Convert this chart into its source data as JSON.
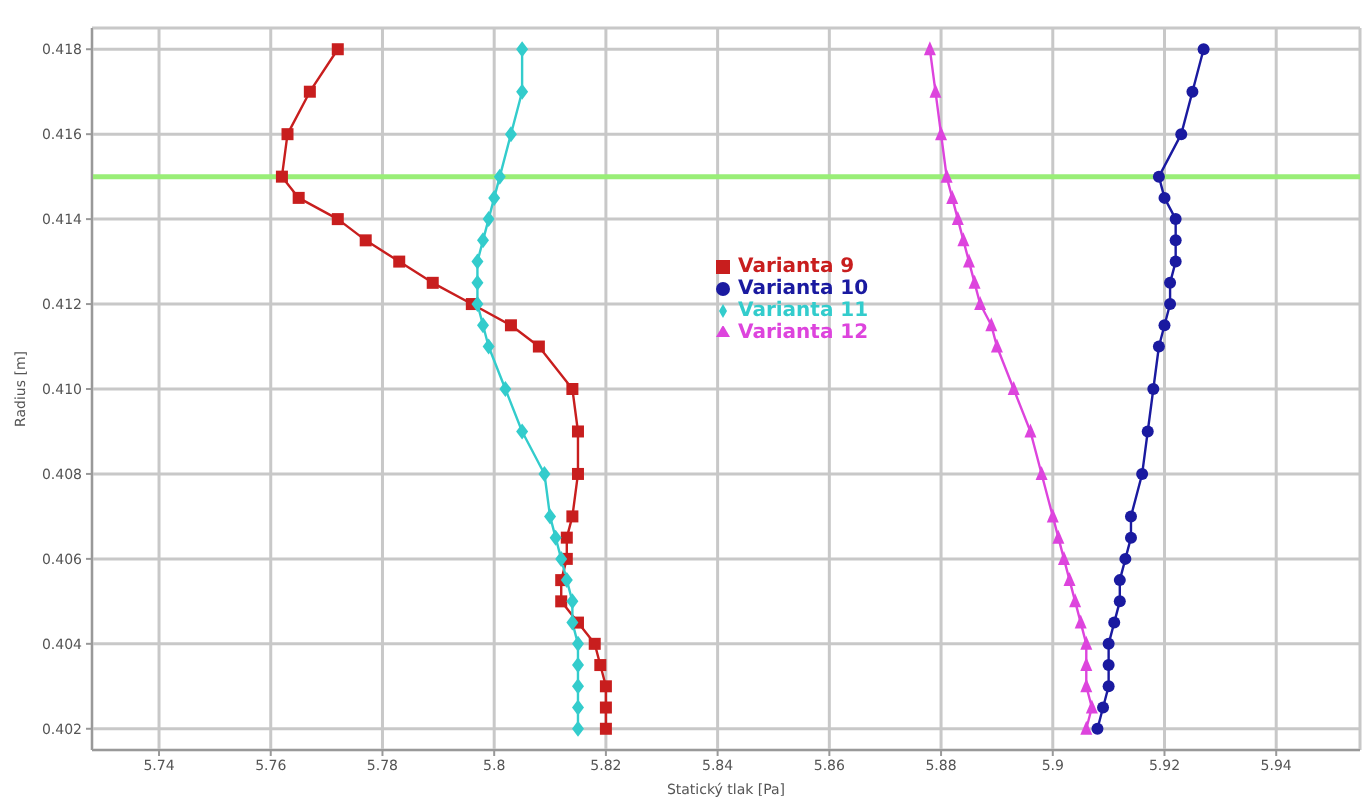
{
  "chart_data": {
    "type": "line",
    "xlabel": "Statický tlak [Pa]",
    "ylabel": "Radius [m]",
    "xlim": [
      5.728,
      5.955
    ],
    "xticks": [
      5.74,
      5.76,
      5.78,
      5.8,
      5.82,
      5.84,
      5.86,
      5.88,
      5.9,
      5.92,
      5.94
    ],
    "ylim": [
      0.4015,
      0.4185
    ],
    "yticks": [
      {
        "value": 0.402,
        "label": "0.402"
      },
      {
        "value": 0.404,
        "label": "0.404"
      },
      {
        "value": 0.406,
        "label": "0.406"
      },
      {
        "value": 0.408,
        "label": "0.408"
      },
      {
        "value": 0.41,
        "label": "0.410"
      },
      {
        "value": 0.412,
        "label": "0.412"
      },
      {
        "value": 0.414,
        "label": "0.414"
      },
      {
        "value": 0.416,
        "label": "0.416"
      },
      {
        "value": 0.418,
        "label": "0.418"
      }
    ],
    "grid": true,
    "legend": "center",
    "ref_lines": [
      {
        "axis": "y",
        "value": 0.415,
        "color": "#99ee77"
      }
    ],
    "series": [
      {
        "name": "Varianta 9",
        "color": "#c81e1e",
        "marker": "square",
        "x": [
          5.772,
          5.767,
          5.763,
          5.762,
          5.765,
          5.772,
          5.777,
          5.783,
          5.789,
          5.796,
          5.803,
          5.808,
          5.814,
          5.815,
          5.815,
          5.814,
          5.813,
          5.813,
          5.812,
          5.812,
          5.815,
          5.818,
          5.819,
          5.82,
          5.82,
          5.82
        ],
        "values": [
          0.418,
          0.417,
          0.416,
          0.415,
          0.4145,
          0.414,
          0.4135,
          0.413,
          0.4125,
          0.412,
          0.4115,
          0.411,
          0.41,
          0.409,
          0.408,
          0.407,
          0.4065,
          0.406,
          0.4055,
          0.405,
          0.4045,
          0.404,
          0.4035,
          0.403,
          0.4025,
          0.402
        ]
      },
      {
        "name": "Varianta 10",
        "color": "#1a1aa0",
        "marker": "circle",
        "x": [
          5.927,
          5.925,
          5.923,
          5.919,
          5.92,
          5.922,
          5.922,
          5.922,
          5.921,
          5.921,
          5.92,
          5.919,
          5.918,
          5.917,
          5.916,
          5.914,
          5.914,
          5.913,
          5.912,
          5.912,
          5.911,
          5.91,
          5.91,
          5.91,
          5.909,
          5.908
        ],
        "values": [
          0.418,
          0.417,
          0.416,
          0.415,
          0.4145,
          0.414,
          0.4135,
          0.413,
          0.4125,
          0.412,
          0.4115,
          0.411,
          0.41,
          0.409,
          0.408,
          0.407,
          0.4065,
          0.406,
          0.4055,
          0.405,
          0.4045,
          0.404,
          0.4035,
          0.403,
          0.4025,
          0.402
        ]
      },
      {
        "name": "Varianta 11",
        "color": "#33cccc",
        "marker": "diamond",
        "x": [
          5.805,
          5.805,
          5.803,
          5.801,
          5.8,
          5.799,
          5.798,
          5.797,
          5.797,
          5.797,
          5.798,
          5.799,
          5.802,
          5.805,
          5.809,
          5.81,
          5.811,
          5.812,
          5.813,
          5.814,
          5.814,
          5.815,
          5.815,
          5.815,
          5.815,
          5.815
        ],
        "values": [
          0.418,
          0.417,
          0.416,
          0.415,
          0.4145,
          0.414,
          0.4135,
          0.413,
          0.4125,
          0.412,
          0.4115,
          0.411,
          0.41,
          0.409,
          0.408,
          0.407,
          0.4065,
          0.406,
          0.4055,
          0.405,
          0.4045,
          0.404,
          0.4035,
          0.403,
          0.4025,
          0.402
        ]
      },
      {
        "name": "Varianta 12",
        "color": "#dd44dd",
        "marker": "triangle",
        "x": [
          5.878,
          5.879,
          5.88,
          5.881,
          5.882,
          5.883,
          5.884,
          5.885,
          5.886,
          5.887,
          5.889,
          5.89,
          5.893,
          5.896,
          5.898,
          5.9,
          5.901,
          5.902,
          5.903,
          5.904,
          5.905,
          5.906,
          5.906,
          5.906,
          5.907,
          5.906
        ],
        "values": [
          0.418,
          0.417,
          0.416,
          0.415,
          0.4145,
          0.414,
          0.4135,
          0.413,
          0.4125,
          0.412,
          0.4115,
          0.411,
          0.41,
          0.409,
          0.408,
          0.407,
          0.4065,
          0.406,
          0.4055,
          0.405,
          0.4045,
          0.404,
          0.4035,
          0.403,
          0.4025,
          0.402
        ]
      }
    ]
  }
}
